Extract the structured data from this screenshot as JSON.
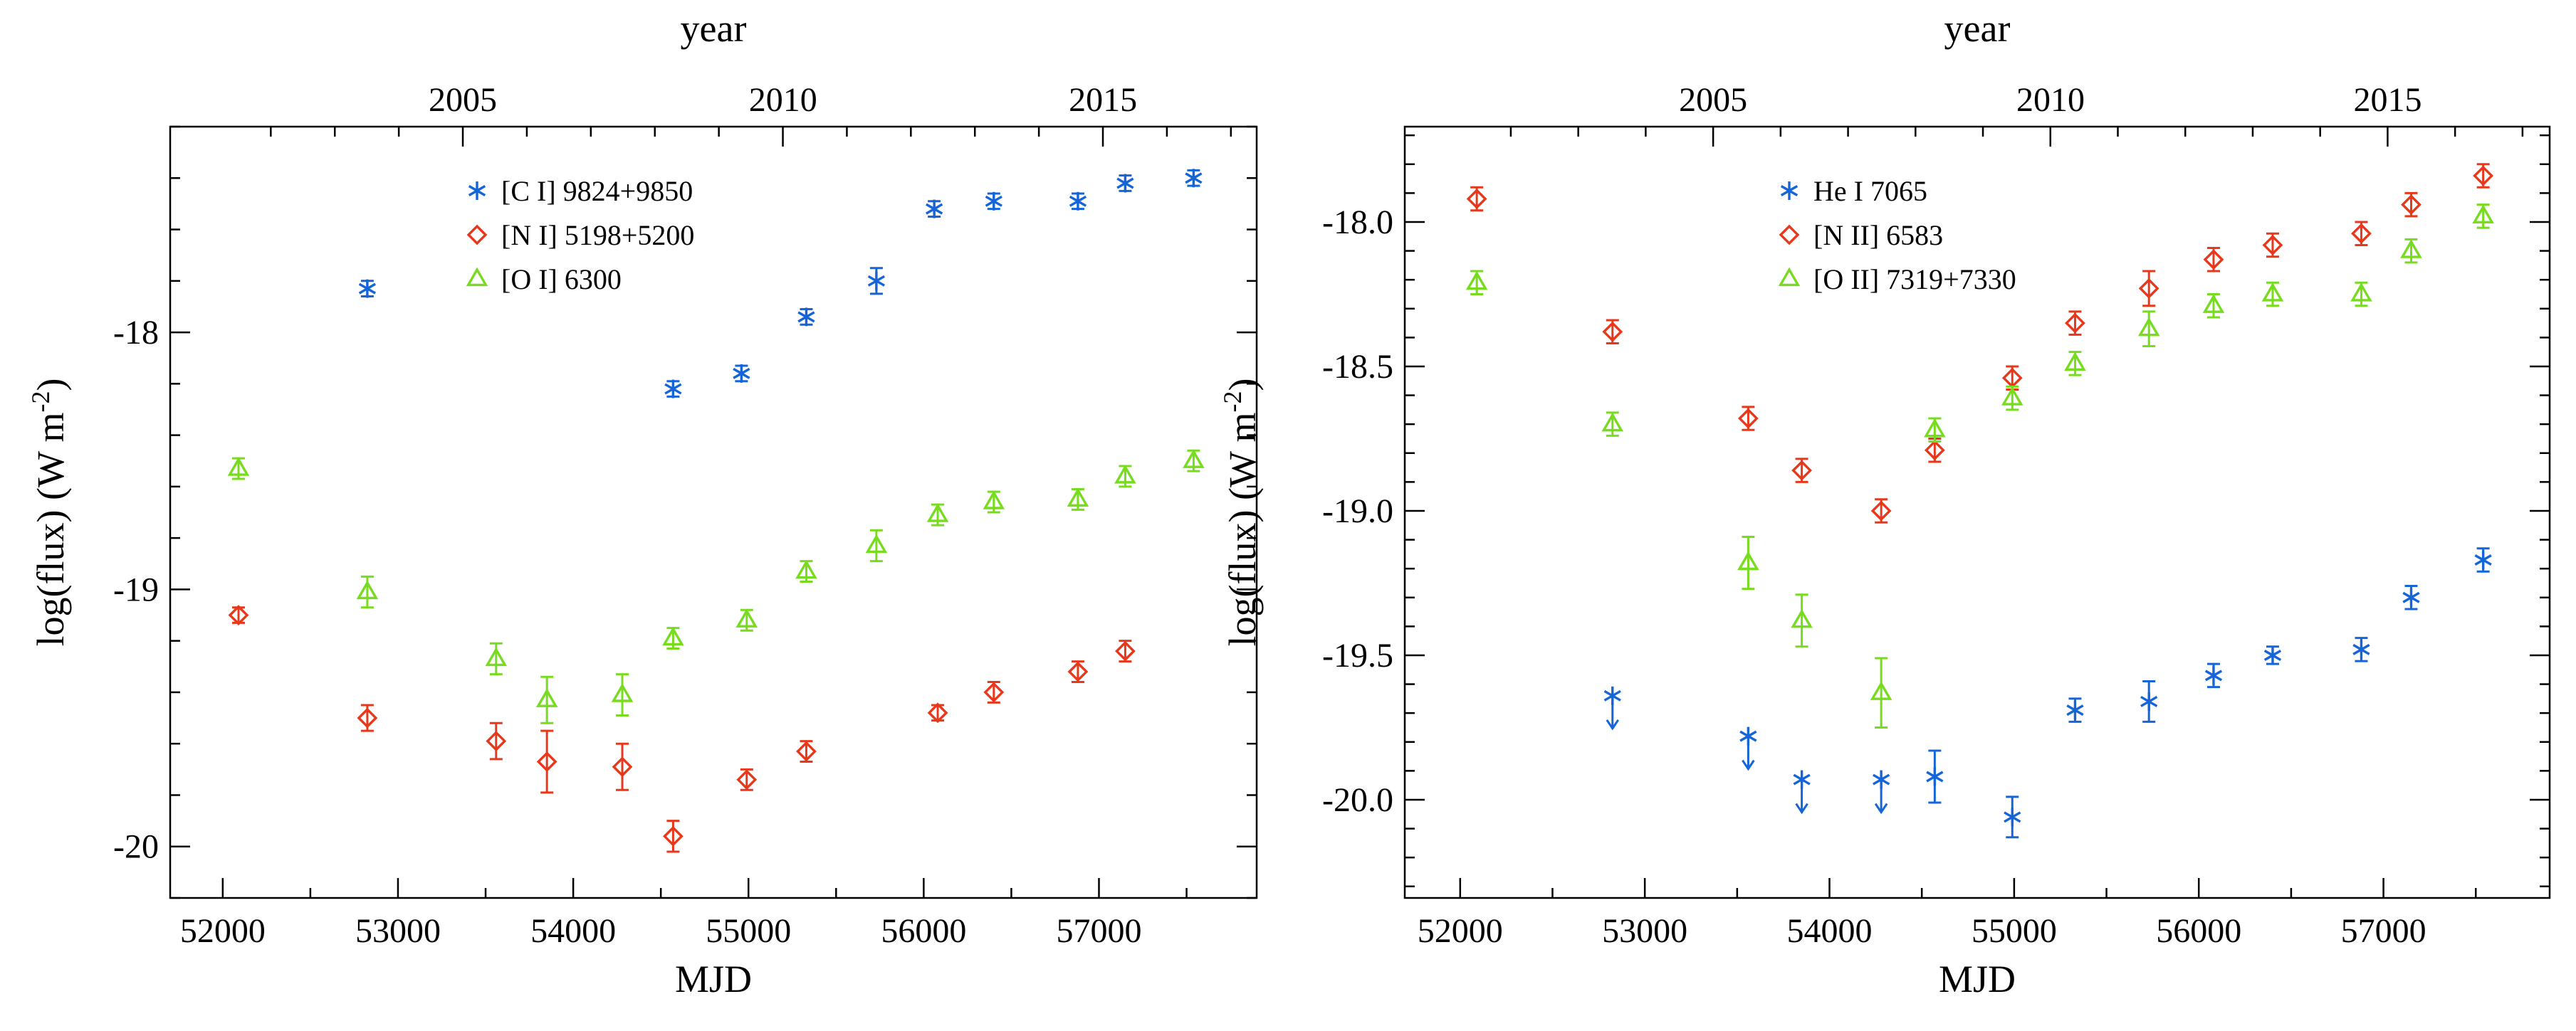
{
  "chart_data": [
    {
      "type": "scatter",
      "xlabel": "MJD",
      "ylabel": "log(flux) (W m",
      "ylabel_sup": "-2",
      "ylabel_close": ")",
      "top_axis_label": "year",
      "xlim": [
        51700,
        57900
      ],
      "ylim": [
        -20.2,
        -17.2
      ],
      "x_ticks": [
        52000,
        53000,
        54000,
        55000,
        56000,
        57000
      ],
      "x_tick_labels": [
        "52000",
        "53000",
        "54000",
        "55000",
        "56000",
        "57000"
      ],
      "y_ticks": [
        -20,
        -19,
        -18
      ],
      "y_tick_labels": [
        "-20",
        "-19",
        "-18"
      ],
      "y_minor_step": 0.2,
      "top_ticks": [
        {
          "mjd": 53370,
          "label": "2005"
        },
        {
          "mjd": 55197,
          "label": "2010"
        },
        {
          "mjd": 57023,
          "label": "2015"
        }
      ],
      "legend_position": "top-left",
      "series": [
        {
          "name": "[C I] 9824+9850",
          "color": "#1565d8",
          "marker": "asterisk",
          "points": [
            {
              "x": 52825,
              "y": -17.83,
              "err": 0.03
            },
            {
              "x": 54570,
              "y": -18.22,
              "err": 0.03
            },
            {
              "x": 54960,
              "y": -18.16,
              "err": 0.03
            },
            {
              "x": 55330,
              "y": -17.94,
              "err": 0.03
            },
            {
              "x": 55730,
              "y": -17.8,
              "err": 0.05
            },
            {
              "x": 56060,
              "y": -17.52,
              "err": 0.03
            },
            {
              "x": 56400,
              "y": -17.49,
              "err": 0.03
            },
            {
              "x": 56880,
              "y": -17.49,
              "err": 0.03
            },
            {
              "x": 57150,
              "y": -17.42,
              "err": 0.03
            },
            {
              "x": 57540,
              "y": -17.4,
              "err": 0.03
            }
          ]
        },
        {
          "name": "[N I] 5198+5200",
          "color": "#e8381c",
          "marker": "diamond",
          "points": [
            {
              "x": 52090,
              "y": -19.1,
              "err": 0.03
            },
            {
              "x": 52825,
              "y": -19.5,
              "err": 0.05
            },
            {
              "x": 53560,
              "y": -19.59,
              "err": 0.07
            },
            {
              "x": 53850,
              "y": -19.67,
              "err": 0.12
            },
            {
              "x": 54280,
              "y": -19.69,
              "err": 0.09
            },
            {
              "x": 54570,
              "y": -19.96,
              "err": 0.06
            },
            {
              "x": 54990,
              "y": -19.74,
              "err": 0.04
            },
            {
              "x": 55330,
              "y": -19.63,
              "err": 0.04
            },
            {
              "x": 56080,
              "y": -19.48,
              "err": 0.03
            },
            {
              "x": 56400,
              "y": -19.4,
              "err": 0.04
            },
            {
              "x": 56880,
              "y": -19.32,
              "err": 0.04
            },
            {
              "x": 57150,
              "y": -19.24,
              "err": 0.04
            }
          ]
        },
        {
          "name": "[O I] 6300",
          "color": "#78dc1e",
          "marker": "triangle",
          "points": [
            {
              "x": 52090,
              "y": -18.53,
              "err": 0.04
            },
            {
              "x": 52825,
              "y": -19.01,
              "err": 0.06
            },
            {
              "x": 53560,
              "y": -19.27,
              "err": 0.06
            },
            {
              "x": 53850,
              "y": -19.43,
              "err": 0.09
            },
            {
              "x": 54280,
              "y": -19.41,
              "err": 0.08
            },
            {
              "x": 54570,
              "y": -19.19,
              "err": 0.04
            },
            {
              "x": 54990,
              "y": -19.12,
              "err": 0.04
            },
            {
              "x": 55330,
              "y": -18.93,
              "err": 0.04
            },
            {
              "x": 55730,
              "y": -18.83,
              "err": 0.06
            },
            {
              "x": 56080,
              "y": -18.71,
              "err": 0.04
            },
            {
              "x": 56400,
              "y": -18.66,
              "err": 0.04
            },
            {
              "x": 56880,
              "y": -18.65,
              "err": 0.04
            },
            {
              "x": 57150,
              "y": -18.56,
              "err": 0.04
            },
            {
              "x": 57540,
              "y": -18.5,
              "err": 0.04
            }
          ]
        }
      ]
    },
    {
      "type": "scatter",
      "xlabel": "MJD",
      "ylabel": "log(flux) (W m",
      "ylabel_sup": "-2",
      "ylabel_close": ")",
      "top_axis_label": "year",
      "xlim": [
        51700,
        57900
      ],
      "ylim": [
        -20.34,
        -17.67
      ],
      "x_ticks": [
        52000,
        53000,
        54000,
        55000,
        56000,
        57000
      ],
      "x_tick_labels": [
        "52000",
        "53000",
        "54000",
        "55000",
        "56000",
        "57000"
      ],
      "y_ticks": [
        -20.0,
        -19.5,
        -19.0,
        -18.5,
        -18.0
      ],
      "y_tick_labels": [
        "-20.0",
        "-19.5",
        "-19.0",
        "-18.5",
        "-18.0"
      ],
      "y_minor_step": 0.1,
      "top_ticks": [
        {
          "mjd": 53370,
          "label": "2005"
        },
        {
          "mjd": 55197,
          "label": "2010"
        },
        {
          "mjd": 57023,
          "label": "2015"
        }
      ],
      "legend_position": "top-left",
      "series": [
        {
          "name": "He I 7065",
          "color": "#1565d8",
          "marker": "asterisk",
          "points": [
            {
              "x": 52825,
              "y": -19.64,
              "upper_limit": true
            },
            {
              "x": 53560,
              "y": -19.78,
              "upper_limit": true
            },
            {
              "x": 53850,
              "y": -19.93,
              "upper_limit": true
            },
            {
              "x": 54280,
              "y": -19.93,
              "upper_limit": true
            },
            {
              "x": 54570,
              "y": -19.92,
              "err": 0.09
            },
            {
              "x": 54990,
              "y": -20.06,
              "err": 0.07
            },
            {
              "x": 55330,
              "y": -19.69,
              "err": 0.04
            },
            {
              "x": 55730,
              "y": -19.66,
              "err": 0.07
            },
            {
              "x": 56080,
              "y": -19.57,
              "err": 0.04
            },
            {
              "x": 56400,
              "y": -19.5,
              "err": 0.03
            },
            {
              "x": 56880,
              "y": -19.48,
              "err": 0.04
            },
            {
              "x": 57150,
              "y": -19.3,
              "err": 0.04
            },
            {
              "x": 57540,
              "y": -19.17,
              "err": 0.04
            }
          ]
        },
        {
          "name": "[N II] 6583",
          "color": "#e8381c",
          "marker": "diamond",
          "points": [
            {
              "x": 52090,
              "y": -17.92,
              "err": 0.04
            },
            {
              "x": 52825,
              "y": -18.38,
              "err": 0.04
            },
            {
              "x": 53560,
              "y": -18.68,
              "err": 0.04
            },
            {
              "x": 53850,
              "y": -18.86,
              "err": 0.04
            },
            {
              "x": 54280,
              "y": -19.0,
              "err": 0.04
            },
            {
              "x": 54570,
              "y": -18.79,
              "err": 0.04
            },
            {
              "x": 54990,
              "y": -18.54,
              "err": 0.04
            },
            {
              "x": 55330,
              "y": -18.35,
              "err": 0.04
            },
            {
              "x": 55730,
              "y": -18.23,
              "err": 0.06
            },
            {
              "x": 56080,
              "y": -18.13,
              "err": 0.04
            },
            {
              "x": 56400,
              "y": -18.08,
              "err": 0.04
            },
            {
              "x": 56880,
              "y": -18.04,
              "err": 0.04
            },
            {
              "x": 57150,
              "y": -17.94,
              "err": 0.04
            },
            {
              "x": 57540,
              "y": -17.84,
              "err": 0.04
            }
          ]
        },
        {
          "name": "[O II] 7319+7330",
          "color": "#78dc1e",
          "marker": "triangle",
          "points": [
            {
              "x": 52090,
              "y": -18.21,
              "err": 0.04
            },
            {
              "x": 52825,
              "y": -18.7,
              "err": 0.04
            },
            {
              "x": 53560,
              "y": -19.18,
              "err": 0.09
            },
            {
              "x": 53850,
              "y": -19.38,
              "err": 0.09
            },
            {
              "x": 54280,
              "y": -19.63,
              "err": 0.12
            },
            {
              "x": 54570,
              "y": -18.72,
              "err": 0.04
            },
            {
              "x": 54990,
              "y": -18.61,
              "err": 0.04
            },
            {
              "x": 55330,
              "y": -18.49,
              "err": 0.04
            },
            {
              "x": 55730,
              "y": -18.37,
              "err": 0.06
            },
            {
              "x": 56080,
              "y": -18.29,
              "err": 0.04
            },
            {
              "x": 56400,
              "y": -18.25,
              "err": 0.04
            },
            {
              "x": 56880,
              "y": -18.25,
              "err": 0.04
            },
            {
              "x": 57150,
              "y": -18.1,
              "err": 0.04
            },
            {
              "x": 57540,
              "y": -17.98,
              "err": 0.04
            }
          ]
        }
      ]
    }
  ]
}
